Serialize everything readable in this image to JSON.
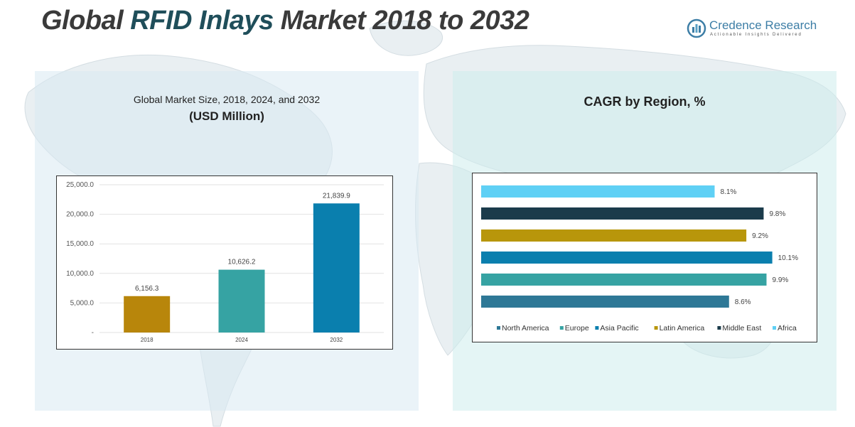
{
  "header": {
    "title_prefix": "Global ",
    "title_accent": "RFID Inlays",
    "title_suffix": " Market 2018 to 2032"
  },
  "logo": {
    "brand": "Credence Research",
    "tagline": "Actionable Insights Delivered",
    "icon": "credence-logo-icon"
  },
  "left_panel": {
    "title_line1": "Global Market Size, 2018, 2024, and 2032",
    "title_line2": "(USD Million)"
  },
  "right_panel": {
    "title": "CAGR by Region, %"
  },
  "chart_data": [
    {
      "type": "bar",
      "categories": [
        "2018",
        "2024",
        "2032"
      ],
      "values": [
        6156.3,
        10626.2,
        21839.9
      ],
      "value_labels": [
        "6,156.3",
        "10,626.2",
        "21,839.9"
      ],
      "colors": [
        "#b8860b",
        "#36a3a3",
        "#0a7fae"
      ],
      "yticks": [
        "-",
        "5,000.0",
        "10,000.0",
        "15,000.0",
        "20,000.0",
        "25,000.0"
      ],
      "ylim": [
        0,
        25000
      ],
      "grid": true
    },
    {
      "type": "bar",
      "orientation": "horizontal",
      "series": [
        {
          "name": "North America",
          "value": 8.6,
          "label": "8.6%",
          "color": "#2e7896"
        },
        {
          "name": "Europe",
          "value": 9.9,
          "label": "9.9%",
          "color": "#36a3a3"
        },
        {
          "name": "Asia Pacific",
          "value": 10.1,
          "label": "10.1%",
          "color": "#0a7fae"
        },
        {
          "name": "Latin America",
          "value": 9.2,
          "label": "9.2%",
          "color": "#b8960b"
        },
        {
          "name": "Middle East",
          "value": 9.8,
          "label": "9.8%",
          "color": "#1b3b4b"
        },
        {
          "name": "Africa",
          "value": 8.1,
          "label": "8.1%",
          "color": "#5fd0f5"
        }
      ],
      "xlim": [
        0,
        10.8
      ],
      "legend_position": "bottom"
    }
  ]
}
